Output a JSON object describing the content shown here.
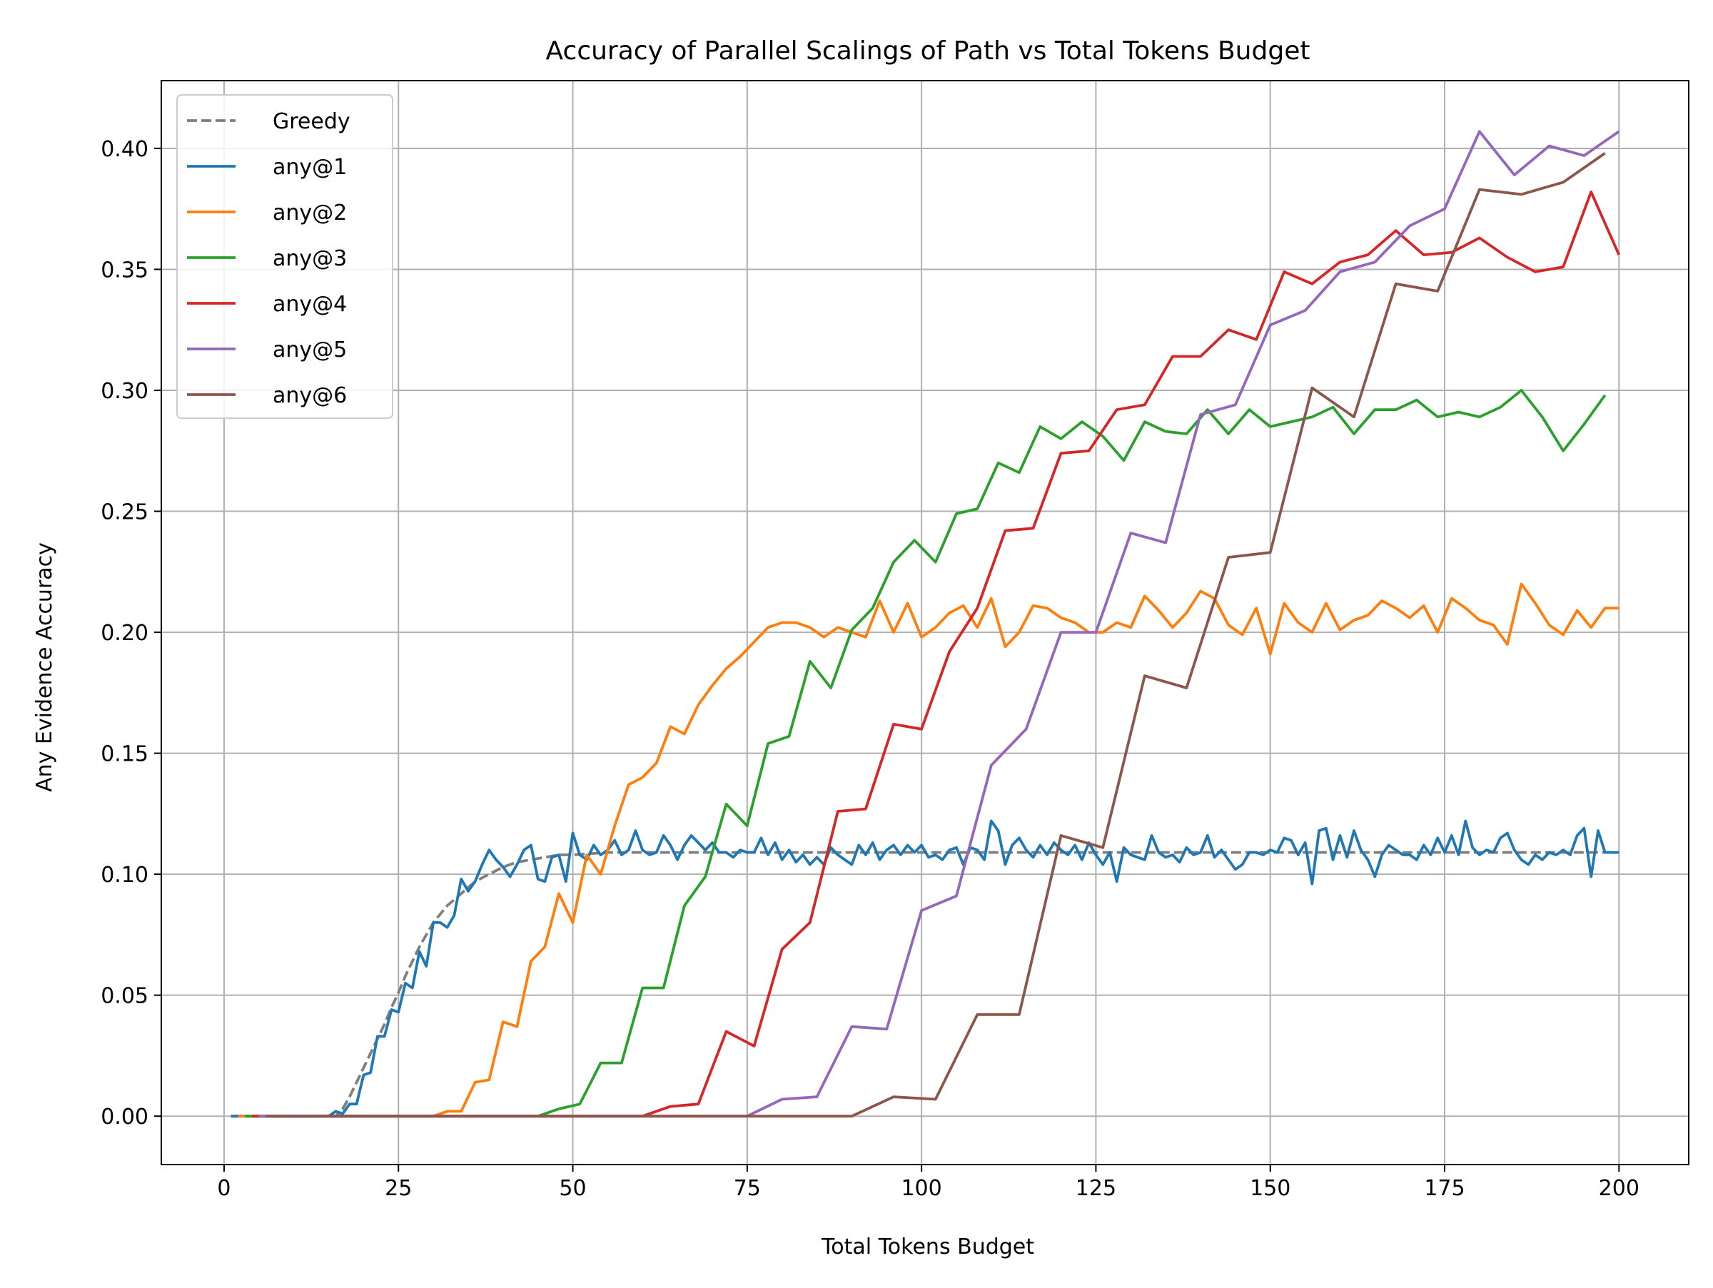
{
  "chart_data": {
    "type": "line",
    "title": "Accuracy of Parallel Scalings of Path vs Total Tokens Budget",
    "xlabel": "Total Tokens Budget",
    "ylabel": "Any Evidence Accuracy",
    "xlim": [
      -9,
      210
    ],
    "ylim": [
      -0.02,
      0.428
    ],
    "xticks": [
      0,
      25,
      50,
      75,
      100,
      125,
      150,
      175,
      200
    ],
    "yticks": [
      0.0,
      0.05,
      0.1,
      0.15,
      0.2,
      0.25,
      0.3,
      0.35,
      0.4
    ],
    "xtick_labels": [
      "0",
      "25",
      "50",
      "75",
      "100",
      "125",
      "150",
      "175",
      "200"
    ],
    "ytick_labels": [
      "0.00",
      "0.05",
      "0.10",
      "0.15",
      "0.20",
      "0.25",
      "0.30",
      "0.35",
      "0.40"
    ],
    "grid": true,
    "legend_position": "top-left",
    "series": [
      {
        "name": "Greedy",
        "color": "#7f7f7f",
        "dashed": true,
        "x": [
          1,
          16,
          17,
          18,
          19,
          20,
          21,
          22,
          23,
          24,
          25,
          26,
          27,
          28,
          29,
          30,
          32,
          34,
          36,
          38,
          40,
          42,
          44,
          46,
          48,
          50,
          55,
          60,
          70,
          80,
          100,
          120,
          140,
          160,
          180,
          200
        ],
        "y": [
          0,
          0,
          0.003,
          0.008,
          0.014,
          0.02,
          0.026,
          0.032,
          0.038,
          0.045,
          0.051,
          0.058,
          0.064,
          0.07,
          0.075,
          0.08,
          0.087,
          0.092,
          0.097,
          0.1,
          0.103,
          0.105,
          0.106,
          0.107,
          0.108,
          0.108,
          0.109,
          0.109,
          0.109,
          0.109,
          0.109,
          0.109,
          0.109,
          0.109,
          0.109,
          0.109
        ]
      },
      {
        "name": "any@1",
        "color": "#1f77b4",
        "x": [
          1,
          15,
          16,
          17,
          18,
          19,
          20,
          21,
          22,
          23,
          24,
          25,
          26,
          27,
          28,
          29,
          30,
          31,
          32,
          33,
          34,
          35,
          36,
          37,
          38,
          39,
          40,
          41,
          42,
          43,
          44,
          45,
          46,
          47,
          48,
          49,
          50,
          51,
          52,
          53,
          54,
          55,
          56,
          57,
          58,
          59,
          60,
          61,
          62,
          63,
          64,
          65,
          66,
          67,
          68,
          69,
          70,
          71,
          72,
          73,
          74,
          75,
          76,
          77,
          78,
          79,
          80,
          81,
          82,
          83,
          84,
          85,
          86,
          87,
          88,
          89,
          90,
          91,
          92,
          93,
          94,
          95,
          96,
          97,
          98,
          99,
          100,
          101,
          102,
          103,
          104,
          105,
          106,
          107,
          108,
          109,
          110,
          111,
          112,
          113,
          114,
          115,
          116,
          117,
          118,
          119,
          120,
          121,
          122,
          123,
          124,
          125,
          126,
          127,
          128,
          129,
          130,
          131,
          132,
          133,
          134,
          135,
          136,
          137,
          138,
          139,
          140,
          141,
          142,
          143,
          144,
          145,
          146,
          147,
          148,
          149,
          150,
          151,
          152,
          153,
          154,
          155,
          156,
          157,
          158,
          159,
          160,
          161,
          162,
          163,
          164,
          165,
          166,
          167,
          168,
          169,
          170,
          171,
          172,
          173,
          174,
          175,
          176,
          177,
          178,
          179,
          180,
          181,
          182,
          183,
          184,
          185,
          186,
          187,
          188,
          189,
          190,
          191,
          192,
          193,
          194,
          195,
          196,
          197,
          198,
          199,
          200
        ],
        "y": [
          0,
          0,
          0.002,
          0.001,
          0.005,
          0.005,
          0.017,
          0.018,
          0.033,
          0.033,
          0.044,
          0.043,
          0.055,
          0.053,
          0.068,
          0.062,
          0.08,
          0.08,
          0.078,
          0.083,
          0.098,
          0.093,
          0.097,
          0.104,
          0.11,
          0.106,
          0.103,
          0.099,
          0.104,
          0.11,
          0.112,
          0.098,
          0.097,
          0.107,
          0.108,
          0.097,
          0.117,
          0.108,
          0.106,
          0.112,
          0.108,
          0.11,
          0.114,
          0.108,
          0.11,
          0.118,
          0.11,
          0.108,
          0.109,
          0.116,
          0.112,
          0.106,
          0.112,
          0.116,
          0.113,
          0.11,
          0.113,
          0.109,
          0.109,
          0.107,
          0.11,
          0.109,
          0.109,
          0.115,
          0.108,
          0.113,
          0.106,
          0.11,
          0.105,
          0.108,
          0.104,
          0.107,
          0.104,
          0.111,
          0.108,
          0.106,
          0.104,
          0.112,
          0.108,
          0.113,
          0.106,
          0.11,
          0.112,
          0.108,
          0.112,
          0.109,
          0.112,
          0.107,
          0.108,
          0.106,
          0.11,
          0.111,
          0.104,
          0.111,
          0.11,
          0.106,
          0.122,
          0.118,
          0.104,
          0.112,
          0.115,
          0.11,
          0.107,
          0.112,
          0.108,
          0.113,
          0.11,
          0.108,
          0.112,
          0.106,
          0.113,
          0.108,
          0.104,
          0.109,
          0.097,
          0.111,
          0.108,
          0.107,
          0.106,
          0.116,
          0.109,
          0.107,
          0.108,
          0.105,
          0.111,
          0.108,
          0.109,
          0.116,
          0.107,
          0.11,
          0.106,
          0.102,
          0.104,
          0.109,
          0.109,
          0.108,
          0.11,
          0.109,
          0.115,
          0.114,
          0.108,
          0.113,
          0.096,
          0.118,
          0.119,
          0.106,
          0.116,
          0.107,
          0.118,
          0.11,
          0.106,
          0.099,
          0.108,
          0.112,
          0.11,
          0.108,
          0.108,
          0.106,
          0.112,
          0.108,
          0.115,
          0.109,
          0.116,
          0.108,
          0.122,
          0.111,
          0.108,
          0.11,
          0.109,
          0.115,
          0.117,
          0.11,
          0.106,
          0.104,
          0.108,
          0.106,
          0.109,
          0.108,
          0.11,
          0.108,
          0.116,
          0.119,
          0.099,
          0.118,
          0.109,
          0.109,
          0.109
        ]
      },
      {
        "name": "any@2",
        "color": "#ff7f0e",
        "x": [
          2,
          30,
          32,
          34,
          36,
          38,
          40,
          42,
          44,
          46,
          48,
          50,
          52,
          54,
          56,
          58,
          60,
          62,
          64,
          66,
          68,
          70,
          72,
          74,
          76,
          78,
          80,
          82,
          84,
          86,
          88,
          90,
          92,
          94,
          96,
          98,
          100,
          102,
          104,
          106,
          108,
          110,
          112,
          114,
          116,
          118,
          120,
          122,
          124,
          126,
          128,
          130,
          132,
          134,
          136,
          138,
          140,
          142,
          144,
          146,
          148,
          150,
          152,
          154,
          156,
          158,
          160,
          162,
          164,
          166,
          168,
          170,
          172,
          174,
          176,
          178,
          180,
          182,
          184,
          186,
          188,
          190,
          192,
          194,
          196,
          198,
          200
        ],
        "y": [
          0,
          0,
          0.002,
          0.002,
          0.014,
          0.015,
          0.039,
          0.037,
          0.064,
          0.07,
          0.092,
          0.08,
          0.108,
          0.1,
          0.12,
          0.137,
          0.14,
          0.146,
          0.161,
          0.158,
          0.17,
          0.178,
          0.185,
          0.19,
          0.196,
          0.202,
          0.204,
          0.204,
          0.202,
          0.198,
          0.202,
          0.2,
          0.198,
          0.213,
          0.2,
          0.212,
          0.198,
          0.202,
          0.208,
          0.211,
          0.202,
          0.214,
          0.194,
          0.2,
          0.211,
          0.21,
          0.206,
          0.204,
          0.2,
          0.2,
          0.204,
          0.202,
          0.215,
          0.209,
          0.202,
          0.208,
          0.217,
          0.214,
          0.203,
          0.199,
          0.21,
          0.191,
          0.212,
          0.204,
          0.2,
          0.212,
          0.201,
          0.205,
          0.207,
          0.213,
          0.21,
          0.206,
          0.211,
          0.2,
          0.214,
          0.21,
          0.205,
          0.203,
          0.195,
          0.22,
          0.212,
          0.203,
          0.199,
          0.209,
          0.202,
          0.21,
          0.21
        ]
      },
      {
        "name": "any@3",
        "color": "#2ca02c",
        "x": [
          3,
          45,
          48,
          51,
          54,
          57,
          60,
          63,
          66,
          69,
          72,
          75,
          78,
          81,
          84,
          87,
          90,
          93,
          96,
          99,
          102,
          105,
          108,
          111,
          114,
          117,
          120,
          123,
          126,
          129,
          132,
          135,
          138,
          141,
          144,
          147,
          150,
          153,
          156,
          159,
          162,
          165,
          168,
          171,
          174,
          177,
          180,
          183,
          186,
          189,
          192,
          195,
          198
        ],
        "y": [
          0,
          0,
          0.003,
          0.005,
          0.022,
          0.022,
          0.053,
          0.053,
          0.087,
          0.099,
          0.129,
          0.12,
          0.154,
          0.157,
          0.188,
          0.177,
          0.201,
          0.21,
          0.229,
          0.238,
          0.229,
          0.249,
          0.251,
          0.27,
          0.266,
          0.285,
          0.28,
          0.287,
          0.281,
          0.271,
          0.287,
          0.283,
          0.282,
          0.292,
          0.282,
          0.292,
          0.285,
          0.287,
          0.289,
          0.293,
          0.282,
          0.292,
          0.292,
          0.296,
          0.289,
          0.291,
          0.289,
          0.293,
          0.3,
          0.289,
          0.275,
          0.286,
          0.298
        ]
      },
      {
        "name": "any@4",
        "color": "#d62728",
        "x": [
          4,
          60,
          64,
          68,
          72,
          76,
          80,
          84,
          88,
          92,
          96,
          100,
          104,
          108,
          112,
          116,
          120,
          124,
          128,
          132,
          136,
          140,
          144,
          148,
          152,
          156,
          160,
          164,
          168,
          172,
          176,
          180,
          184,
          188,
          192,
          196,
          200
        ],
        "y": [
          0,
          0,
          0.004,
          0.005,
          0.035,
          0.029,
          0.069,
          0.08,
          0.126,
          0.127,
          0.162,
          0.16,
          0.192,
          0.21,
          0.242,
          0.243,
          0.274,
          0.275,
          0.292,
          0.294,
          0.314,
          0.314,
          0.325,
          0.321,
          0.349,
          0.344,
          0.353,
          0.356,
          0.366,
          0.356,
          0.357,
          0.363,
          0.355,
          0.349,
          0.351,
          0.382,
          0.356
        ]
      },
      {
        "name": "any@5",
        "color": "#9467bd",
        "x": [
          5,
          75,
          80,
          85,
          90,
          95,
          100,
          105,
          110,
          115,
          120,
          125,
          130,
          135,
          140,
          145,
          150,
          155,
          160,
          165,
          170,
          175,
          180,
          185,
          190,
          195,
          200
        ],
        "y": [
          0,
          0,
          0.007,
          0.008,
          0.037,
          0.036,
          0.085,
          0.091,
          0.145,
          0.16,
          0.2,
          0.2,
          0.241,
          0.237,
          0.29,
          0.294,
          0.327,
          0.333,
          0.349,
          0.353,
          0.368,
          0.375,
          0.407,
          0.389,
          0.401,
          0.397,
          0.407
        ]
      },
      {
        "name": "any@6",
        "color": "#8c564b",
        "x": [
          6,
          90,
          96,
          102,
          108,
          114,
          120,
          126,
          132,
          138,
          144,
          150,
          156,
          162,
          168,
          174,
          180,
          186,
          192,
          198
        ],
        "y": [
          0,
          0,
          0.008,
          0.007,
          0.042,
          0.042,
          0.116,
          0.111,
          0.182,
          0.177,
          0.231,
          0.233,
          0.301,
          0.289,
          0.344,
          0.341,
          0.383,
          0.381,
          0.386,
          0.398
        ]
      }
    ]
  }
}
